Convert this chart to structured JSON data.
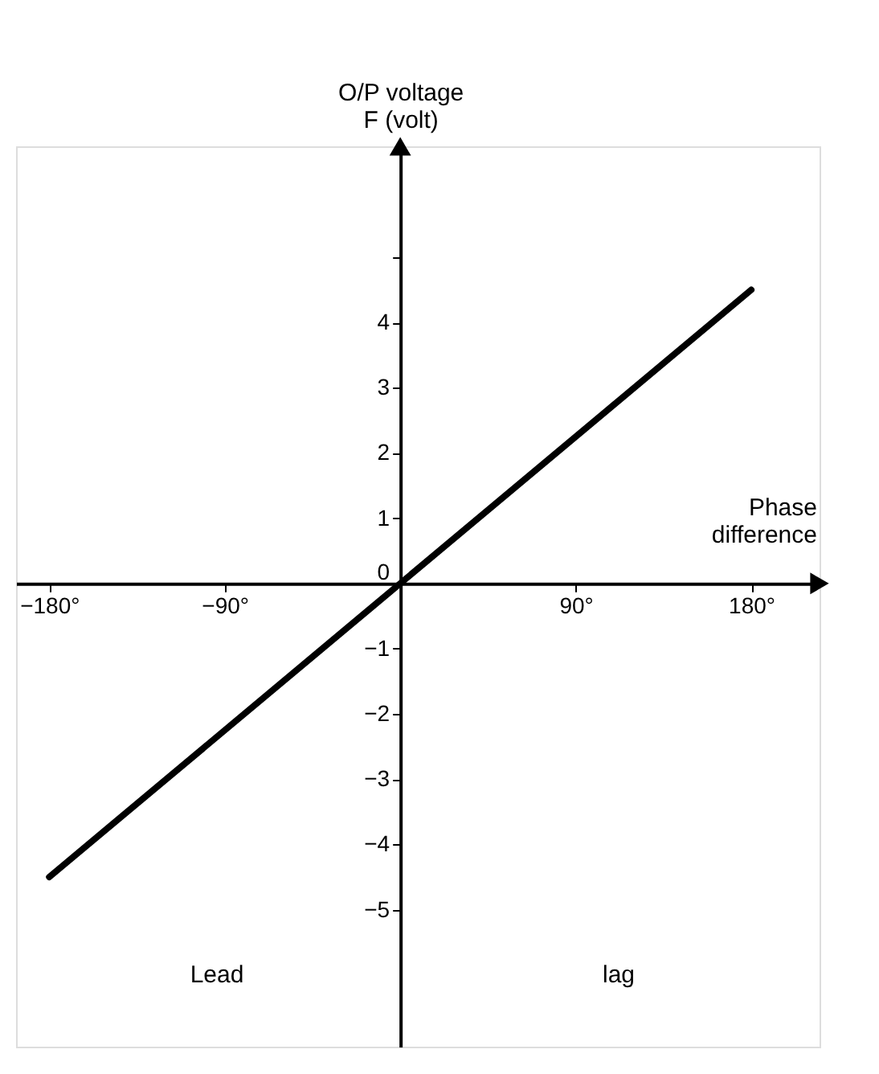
{
  "chart_data": {
    "type": "line",
    "xlabel": "Phase\ndifference",
    "ylabel": "O/P voltage\nF (volt)",
    "x": [
      -180,
      180
    ],
    "series": [
      {
        "color": "#000000",
        "values": [
          -4.5,
          4.5
        ]
      }
    ],
    "xlim": [
      -197,
      215
    ],
    "ylim": [
      -7.1,
      6.7
    ],
    "xticks": [
      {
        "value": -180,
        "label": "−180°"
      },
      {
        "value": -90,
        "label": "−90°"
      },
      {
        "value": 90,
        "label": "90°"
      },
      {
        "value": 180,
        "label": "180°"
      }
    ],
    "yticks": [
      {
        "value": -5,
        "label": "−5"
      },
      {
        "value": -4,
        "label": "−4"
      },
      {
        "value": -3,
        "label": "−3"
      },
      {
        "value": -2,
        "label": "−2"
      },
      {
        "value": -1,
        "label": "−1"
      },
      0,
      1,
      2,
      3,
      4,
      {
        "value": 5,
        "label": null
      }
    ],
    "annotations": [
      "Lead",
      "lag"
    ],
    "grid": false,
    "marker": "none",
    "line_style": "solid"
  }
}
